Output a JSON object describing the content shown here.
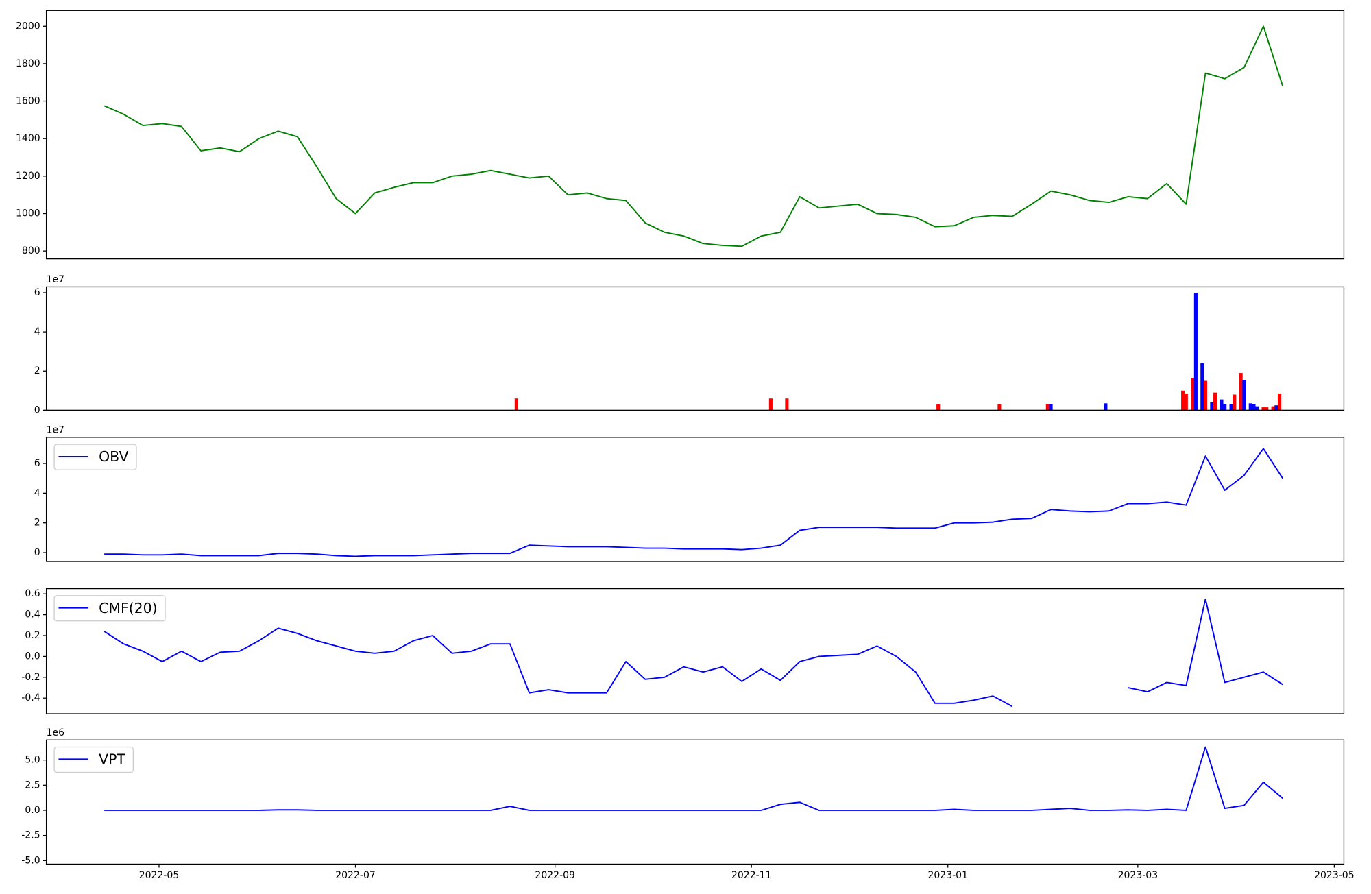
{
  "chart_data": [
    {
      "type": "line",
      "color": "#008000",
      "x": [
        19096,
        19102,
        19108,
        19114,
        19120,
        19126,
        19132,
        19138,
        19144,
        19150,
        19156,
        19162,
        19168,
        19174,
        19180,
        19186,
        19192,
        19198,
        19204,
        19210,
        19216,
        19222,
        19228,
        19234,
        19240,
        19246,
        19252,
        19258,
        19264,
        19270,
        19276,
        19282,
        19288,
        19294,
        19300,
        19306,
        19312,
        19318,
        19324,
        19330,
        19336,
        19342,
        19348,
        19354,
        19360,
        19366,
        19372,
        19378,
        19384,
        19390,
        19396,
        19402,
        19408,
        19414,
        19420,
        19426,
        19432,
        19438,
        19444,
        19450,
        19456,
        19462
      ],
      "values": [
        1575,
        1530,
        1470,
        1480,
        1465,
        1335,
        1350,
        1330,
        1400,
        1440,
        1410,
        1250,
        1080,
        1000,
        1110,
        1140,
        1165,
        1165,
        1200,
        1210,
        1230,
        1210,
        1190,
        1200,
        1100,
        1110,
        1080,
        1070,
        950,
        900,
        880,
        840,
        830,
        825,
        880,
        900,
        1090,
        1030,
        1040,
        1050,
        1000,
        995,
        980,
        930,
        935,
        980,
        990,
        985,
        1050,
        1120,
        1100,
        1070,
        1060,
        1090,
        1080,
        1160,
        1050,
        1750,
        1720,
        1780,
        2000,
        1680
      ],
      "xlim": [
        19078,
        19481
      ],
      "ylim": [
        758,
        2084
      ],
      "yticks": [
        800,
        1000,
        1200,
        1400,
        1600,
        1800,
        2000
      ]
    },
    {
      "type": "bar",
      "offset_label": "1e7",
      "x": [
        19224,
        19303,
        19308,
        19355,
        19374,
        19389,
        19390,
        19407,
        19431,
        19432,
        19434,
        19435,
        19437,
        19438,
        19440,
        19441,
        19443,
        19444,
        19446,
        19447,
        19449,
        19450,
        19452,
        19453,
        19454,
        19456,
        19457,
        19459,
        19460,
        19461
      ],
      "values": [
        0.6,
        0.6,
        0.6,
        0.3,
        0.3,
        0.3,
        0.3,
        0.35,
        1.0,
        0.85,
        1.65,
        6.0,
        2.4,
        1.5,
        0.4,
        0.9,
        0.55,
        0.3,
        0.3,
        0.8,
        1.9,
        1.55,
        0.35,
        0.3,
        0.2,
        0.15,
        0.15,
        0.2,
        0.25,
        0.85
      ],
      "colors": [
        "#ff0000",
        "#ff0000",
        "#ff0000",
        "#ff0000",
        "#ff0000",
        "#ff0000",
        "#0000ff",
        "#0000ff",
        "#ff0000",
        "#ff0000",
        "#ff0000",
        "#0000ff",
        "#0000ff",
        "#ff0000",
        "#0000ff",
        "#ff0000",
        "#0000ff",
        "#0000ff",
        "#0000ff",
        "#ff0000",
        "#ff0000",
        "#0000ff",
        "#0000ff",
        "#0000ff",
        "#0000ff",
        "#ff0000",
        "#ff0000",
        "#ff0000",
        "#0000ff",
        "#ff0000"
      ],
      "xlim": [
        19078,
        19481
      ],
      "ylim": [
        0,
        6.3
      ],
      "yticks": [
        0,
        2,
        4,
        6
      ]
    },
    {
      "type": "line",
      "offset_label": "1e7",
      "legend": "upper left",
      "x": [
        19096,
        19102,
        19108,
        19114,
        19120,
        19126,
        19132,
        19138,
        19144,
        19150,
        19156,
        19162,
        19168,
        19174,
        19180,
        19186,
        19192,
        19198,
        19204,
        19210,
        19216,
        19222,
        19228,
        19234,
        19240,
        19246,
        19252,
        19258,
        19264,
        19270,
        19276,
        19282,
        19288,
        19294,
        19300,
        19306,
        19312,
        19318,
        19324,
        19330,
        19336,
        19342,
        19348,
        19354,
        19360,
        19366,
        19372,
        19378,
        19384,
        19390,
        19396,
        19402,
        19408,
        19414,
        19420,
        19426,
        19432,
        19438,
        19444,
        19450,
        19456,
        19462
      ],
      "series": [
        {
          "name": "OBV",
          "color": "#0000ff",
          "values": [
            -0.1,
            -0.1,
            -0.15,
            -0.15,
            -0.1,
            -0.2,
            -0.2,
            -0.2,
            -0.2,
            -0.05,
            -0.05,
            -0.1,
            -0.2,
            -0.25,
            -0.2,
            -0.2,
            -0.2,
            -0.15,
            -0.1,
            -0.05,
            -0.05,
            -0.05,
            0.5,
            0.45,
            0.4,
            0.4,
            0.4,
            0.35,
            0.3,
            0.3,
            0.25,
            0.25,
            0.25,
            0.2,
            0.3,
            0.5,
            1.5,
            1.7,
            1.7,
            1.7,
            1.7,
            1.65,
            1.65,
            1.65,
            2.0,
            2.0,
            2.05,
            2.25,
            2.3,
            2.9,
            2.8,
            2.75,
            2.8,
            3.3,
            3.3,
            3.4,
            3.2,
            6.5,
            4.2,
            5.2,
            7.0,
            5.0
          ]
        }
      ],
      "xlim": [
        19078,
        19481
      ],
      "ylim": [
        -0.6,
        7.76
      ],
      "yticks": [
        0,
        2,
        4,
        6
      ]
    },
    {
      "type": "line",
      "legend": "upper left",
      "x": [
        19096,
        19102,
        19108,
        19114,
        19120,
        19126,
        19132,
        19138,
        19144,
        19150,
        19156,
        19162,
        19168,
        19174,
        19180,
        19186,
        19192,
        19198,
        19204,
        19210,
        19216,
        19222,
        19228,
        19234,
        19240,
        19246,
        19252,
        19258,
        19264,
        19270,
        19276,
        19282,
        19288,
        19294,
        19300,
        19306,
        19312,
        19318,
        19324,
        19330,
        19336,
        19342,
        19348,
        19354,
        19360,
        19366,
        19372,
        19378,
        19384,
        19390,
        19396,
        19402,
        19408,
        19414,
        19420,
        19426,
        19432,
        19438,
        19444,
        19450,
        19456,
        19462
      ],
      "series": [
        {
          "name": "CMF(20)",
          "color": "#0000ff",
          "values": [
            0.24,
            0.12,
            0.05,
            -0.05,
            0.05,
            -0.05,
            0.04,
            0.05,
            0.15,
            0.27,
            0.22,
            0.15,
            0.1,
            0.05,
            0.03,
            0.05,
            0.15,
            0.2,
            0.03,
            0.05,
            0.12,
            0.12,
            -0.35,
            -0.32,
            -0.35,
            -0.35,
            -0.35,
            -0.05,
            -0.22,
            -0.2,
            -0.1,
            -0.15,
            -0.1,
            -0.24,
            -0.12,
            -0.23,
            -0.05,
            0.0,
            0.01,
            0.02,
            0.1,
            0.0,
            -0.15,
            -0.45,
            -0.45,
            -0.42,
            -0.38,
            -0.48,
            null,
            null,
            null,
            null,
            null,
            -0.3,
            -0.34,
            -0.25,
            -0.28,
            0.55,
            -0.25,
            -0.2,
            -0.15,
            -0.27
          ]
        }
      ],
      "xlim": [
        19078,
        19481
      ],
      "ylim": [
        -0.55,
        0.65
      ],
      "yticks": [
        -0.4,
        -0.2,
        {
          "value": 0,
          "label": "0.0"
        },
        0.2,
        0.4,
        0.6
      ]
    },
    {
      "type": "line",
      "offset_label": "1e6",
      "legend": "upper left",
      "x": [
        19096,
        19102,
        19108,
        19114,
        19120,
        19126,
        19132,
        19138,
        19144,
        19150,
        19156,
        19162,
        19168,
        19174,
        19180,
        19186,
        19192,
        19198,
        19204,
        19210,
        19216,
        19222,
        19228,
        19234,
        19240,
        19246,
        19252,
        19258,
        19264,
        19270,
        19276,
        19282,
        19288,
        19294,
        19300,
        19306,
        19312,
        19318,
        19324,
        19330,
        19336,
        19342,
        19348,
        19354,
        19360,
        19366,
        19372,
        19378,
        19384,
        19390,
        19396,
        19402,
        19408,
        19414,
        19420,
        19426,
        19432,
        19438,
        19444,
        19450,
        19456,
        19462
      ],
      "series": [
        {
          "name": "VPT",
          "color": "#0000ff",
          "values": [
            0,
            0,
            0,
            0,
            0,
            0,
            0,
            0,
            0,
            0.05,
            0.05,
            0,
            0,
            0,
            0,
            0,
            0,
            0,
            0,
            0,
            0,
            0.4,
            0,
            0,
            0,
            0,
            0,
            0,
            0,
            0,
            0,
            0,
            0,
            0,
            0,
            0.6,
            0.8,
            0,
            0,
            0,
            0,
            0,
            0,
            0,
            0.1,
            0,
            0,
            0,
            0,
            0.1,
            0.2,
            0,
            0,
            0.05,
            0,
            0.1,
            0,
            6.3,
            0.2,
            0.5,
            2.8,
            1.2
          ]
        }
      ],
      "xlim": [
        19078,
        19481
      ],
      "ylim": [
        -5.35,
        7
      ],
      "yticks": [
        {
          "value": -5,
          "label": "-5.0"
        },
        -2.5,
        {
          "value": 0,
          "label": "0.0"
        },
        2.5,
        {
          "value": 5,
          "label": "5.0"
        }
      ],
      "xticks": [
        {
          "value": 19113,
          "label": "2022-05"
        },
        {
          "value": 19174,
          "label": "2022-07"
        },
        {
          "value": 19236,
          "label": "2022-09"
        },
        {
          "value": 19297,
          "label": "2022-11"
        },
        {
          "value": 19358,
          "label": "2023-01"
        },
        {
          "value": 19417,
          "label": "2023-03"
        },
        {
          "value": 19478,
          "label": "2023-05"
        }
      ]
    }
  ]
}
